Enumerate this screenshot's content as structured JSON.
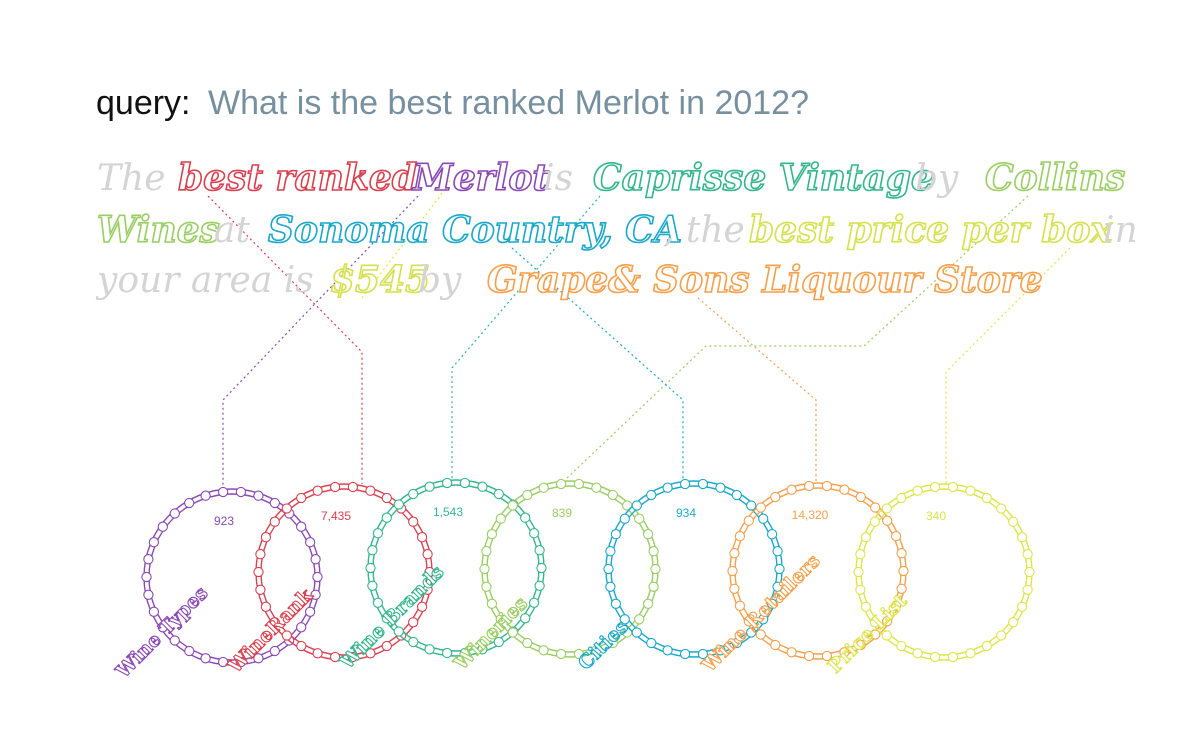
{
  "query": {
    "prefix": "query:",
    "text": "What is the best ranked Merlot in 2012?"
  },
  "answer": {
    "segments": [
      {
        "text": "The ",
        "highlight": false
      },
      {
        "text": "best ranked",
        "highlight": true,
        "color": "#d7414f"
      },
      {
        "text": " ",
        "highlight": false
      },
      {
        "text": "Merlot",
        "highlight": true,
        "color": "#8a49b3"
      },
      {
        "text": " is ",
        "highlight": false
      },
      {
        "text": "Caprisse Vintage",
        "highlight": true,
        "color": "#34b58c"
      },
      {
        "text": " by ",
        "highlight": false
      },
      {
        "text": "Collins",
        "highlight": true,
        "color": "#9acd64"
      },
      {
        "text": "Wines",
        "highlight": true,
        "color": "#9acd64"
      },
      {
        "text": " at ",
        "highlight": false
      },
      {
        "text": "Sonoma Country, CA",
        "highlight": true,
        "color": "#1ba8c8"
      },
      {
        "text": ", the ",
        "highlight": false
      },
      {
        "text": "best price per box",
        "highlight": true,
        "color": "#d5e04f"
      },
      {
        "text": " in",
        "highlight": false
      },
      {
        "text": "your area is ",
        "highlight": false
      },
      {
        "text": "$545",
        "highlight": true,
        "color": "#d5e04f"
      },
      {
        "text": " by ",
        "highlight": false
      },
      {
        "text": "Grape& Sons Liquour Store",
        "highlight": true,
        "color": "#f4a04d"
      }
    ],
    "muted_color": "#d4d4d4"
  },
  "sources": [
    {
      "name": "Wine Types",
      "count": "923",
      "color": "#8a49b3"
    },
    {
      "name": "WineRank",
      "count": "7,435",
      "color": "#d7414f"
    },
    {
      "name": "Wine Brands",
      "count": "1,543",
      "color": "#34b58c"
    },
    {
      "name": "Wineries",
      "count": "839",
      "color": "#9acd64"
    },
    {
      "name": "Cities",
      "count": "934",
      "color": "#1ba8c8"
    },
    {
      "name": "Wine Retailers",
      "count": "14,320",
      "color": "#f4a04d"
    },
    {
      "name": "Price List",
      "count": "340",
      "color": "#dde54a"
    }
  ]
}
